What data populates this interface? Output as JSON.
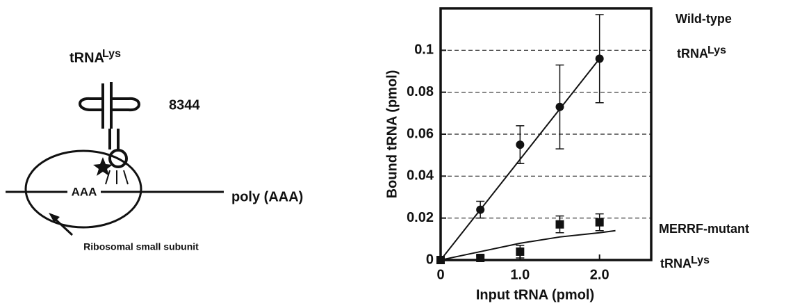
{
  "diagram": {
    "trna": "tRNA",
    "trna_sup": "Lys",
    "site": "8344",
    "codon": "AAA",
    "mrna": "poly (AAA)",
    "ribosome": "Ribosomal small subunit"
  },
  "chart_data": {
    "type": "scatter",
    "x_label": "Input tRNA (pmol)",
    "y_label": "Bound tRNA (pmol)",
    "xlim": [
      0,
      2.65
    ],
    "ylim": [
      0,
      0.12
    ],
    "xticks": [
      0,
      {
        "value": 1,
        "label": "1.0"
      },
      {
        "value": 2,
        "label": "2.0"
      }
    ],
    "yticks": [
      0,
      0.02,
      0.04,
      0.06,
      0.08,
      0.1
    ],
    "grid": true,
    "series": [
      {
        "name": "Wild-type",
        "name_line2": "tRNA",
        "name_sup": "Lys",
        "marker": "circle",
        "color": "#111111",
        "x": [
          0,
          0.5,
          1,
          1.5,
          2
        ],
        "values": [
          0,
          0.024,
          0.055,
          0.073,
          0.096
        ],
        "errors": [
          null,
          0.004,
          0.009,
          0.02,
          0.021
        ],
        "fit": {
          "x": [
            0,
            2
          ],
          "values": [
            0,
            0.096
          ]
        }
      },
      {
        "name": "MERRF-mutant",
        "name_line2": "tRNA",
        "name_sup": "Lys",
        "marker": "square",
        "color": "#111111",
        "x": [
          0,
          0.5,
          1,
          1.5,
          2
        ],
        "values": [
          0,
          0.001,
          0.004,
          0.017,
          0.018
        ],
        "errors": [
          null,
          0.001,
          0.003,
          0.004,
          0.004
        ],
        "fit": {
          "x": [
            0,
            0.5,
            1,
            1.5,
            2,
            2.2
          ],
          "values": [
            0,
            0.004,
            0.008,
            0.011,
            0.013,
            0.014
          ]
        }
      }
    ]
  }
}
